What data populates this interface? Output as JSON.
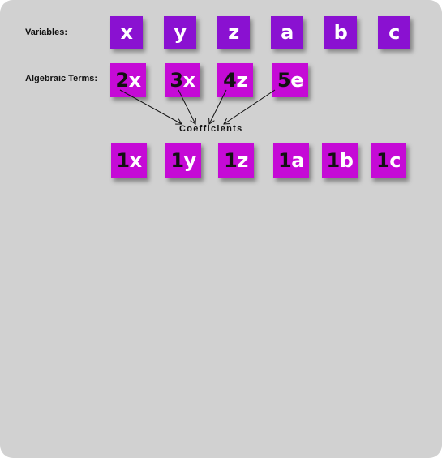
{
  "labels": {
    "variables": "Variables:",
    "terms": "Algebraic Terms:",
    "coefficients": "Coefficients"
  },
  "variables": [
    "x",
    "y",
    "z",
    "a",
    "b",
    "c"
  ],
  "terms": [
    {
      "coef": "2",
      "var": "x"
    },
    {
      "coef": "3",
      "var": "x"
    },
    {
      "coef": "4",
      "var": "z"
    },
    {
      "coef": "5",
      "var": "e"
    }
  ],
  "unit_terms": [
    {
      "coef": "1",
      "var": "x"
    },
    {
      "coef": "1",
      "var": "y"
    },
    {
      "coef": "1",
      "var": "z"
    },
    {
      "coef": "1",
      "var": "a"
    },
    {
      "coef": "1",
      "var": "b"
    },
    {
      "coef": "1",
      "var": "c"
    }
  ],
  "colors": {
    "background": "#d1d1d1",
    "variable_tile": "#8a11d1",
    "term_tile": "#c50ad6",
    "coefficient_text": "#111111",
    "variable_text": "#ffffff"
  }
}
